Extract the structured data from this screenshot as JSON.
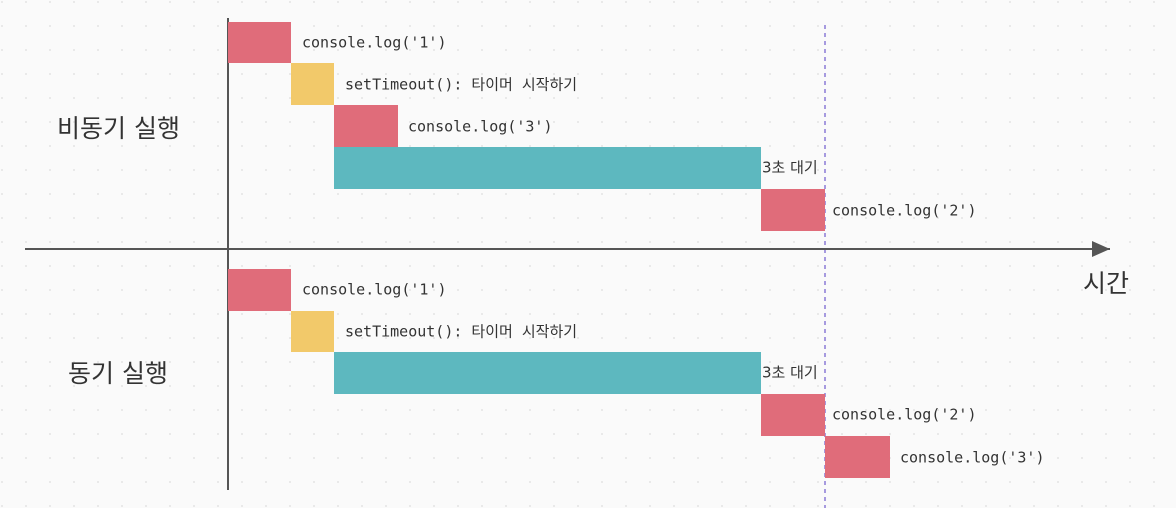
{
  "time_axis_label": "시간",
  "sections": [
    {
      "label": "비동기 실행",
      "steps": [
        "console.log('1')",
        "setTimeout(): 타이머 시작하기",
        "console.log('3')",
        "3초 대기",
        "console.log('2')"
      ]
    },
    {
      "label": "동기 실행",
      "steps": [
        "console.log('1')",
        "setTimeout(): 타이머 시작하기",
        "3초 대기",
        "console.log('2')",
        "console.log('3')"
      ]
    }
  ]
}
